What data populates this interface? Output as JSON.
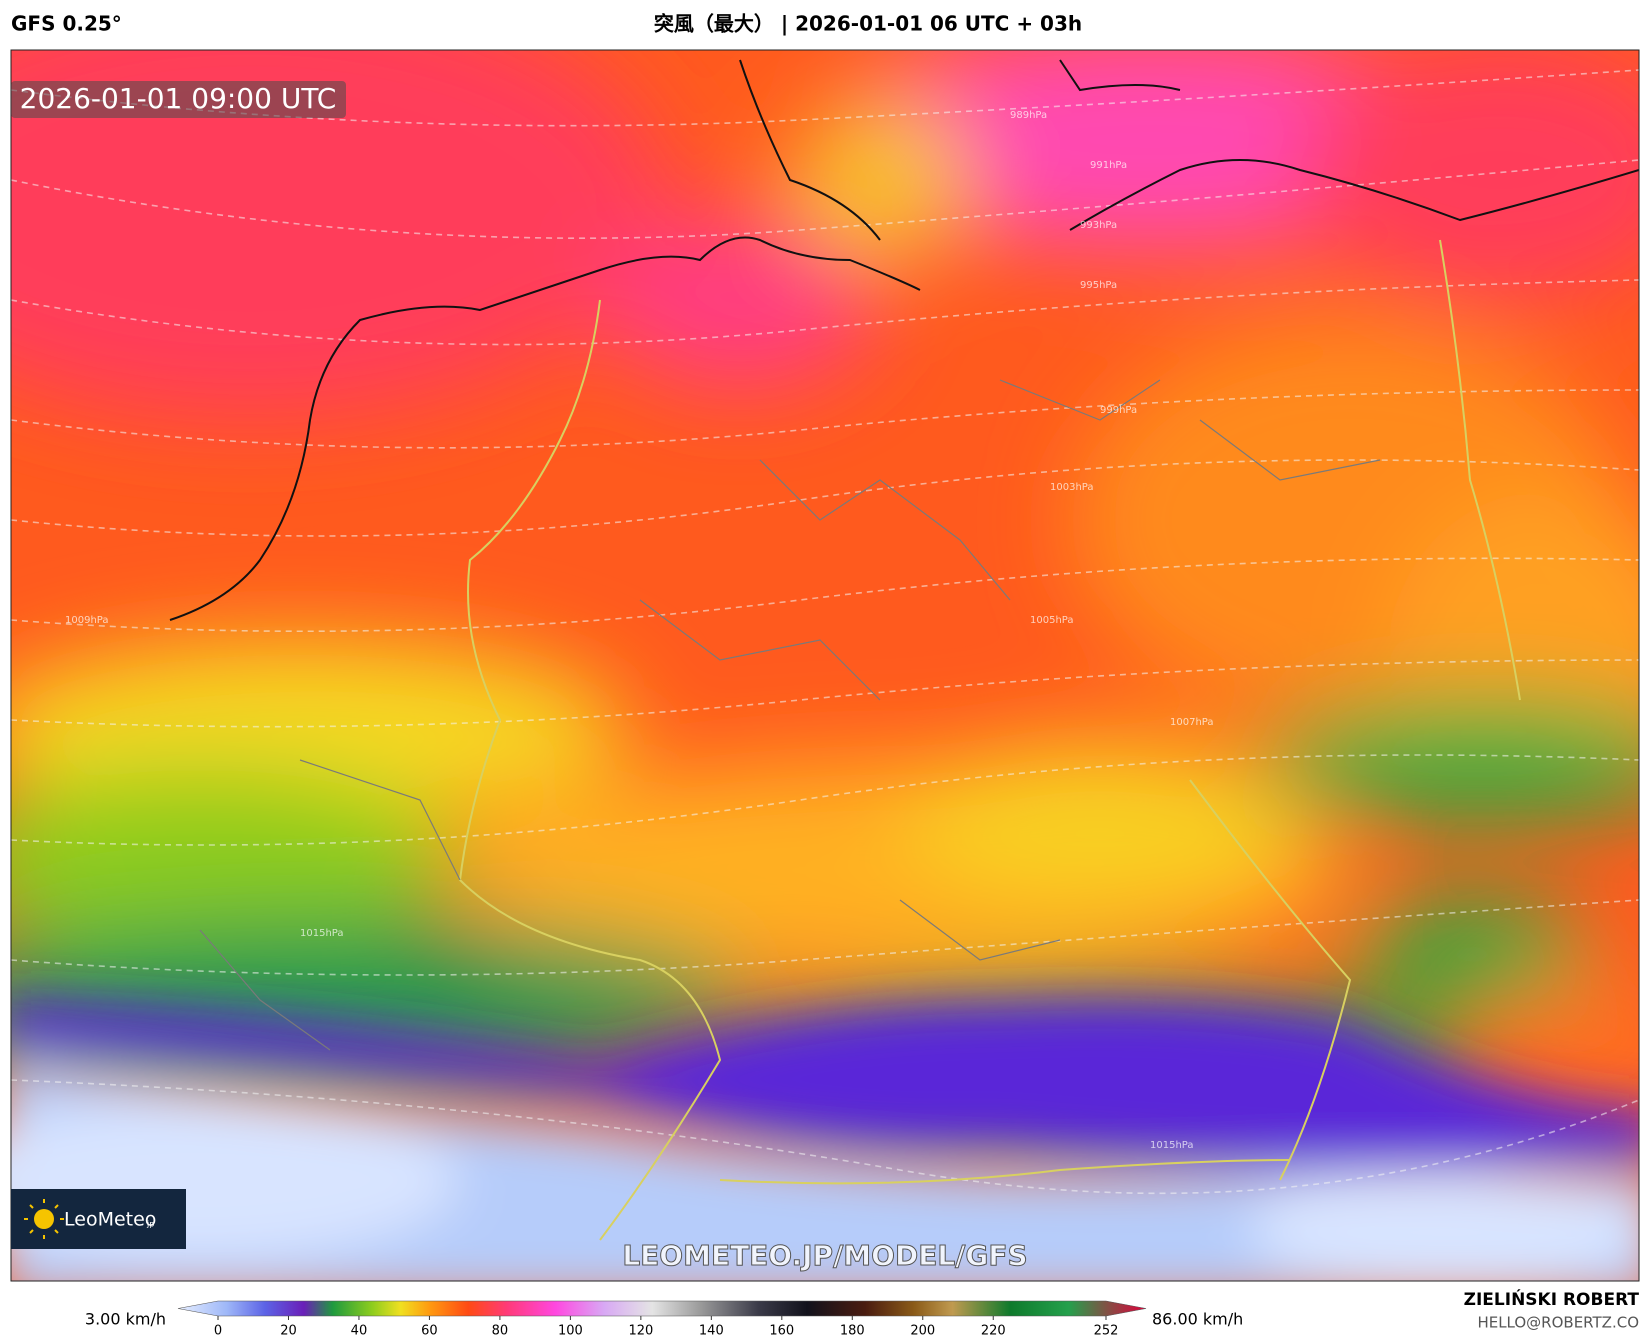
{
  "header": {
    "model": "GFS 0.25°",
    "title": "突風（最大） | 2026-01-01 06 UTC + 03h"
  },
  "map": {
    "valid_time": "2026-01-01 09:00 UTC",
    "logo": "LeoMeteo",
    "logo_suffix": "jp",
    "watermark": "LEOMETEO.JP/MODEL/GFS",
    "isobar_labels": [
      "989hPa",
      "991hPa",
      "993hPa",
      "995hPa",
      "999hPa",
      "1003hPa",
      "1005hPa",
      "1007hPa",
      "1009hPa",
      "1015hPa",
      "1015hPa"
    ]
  },
  "colorbar": {
    "min_label": "3.00 km/h",
    "max_label": "86.00 km/h",
    "lim": [
      0,
      252
    ],
    "ticks": [
      0,
      20,
      40,
      60,
      80,
      100,
      120,
      140,
      160,
      180,
      200,
      220,
      252
    ]
  },
  "footer": {
    "author": "ZIELIŃSKI ROBERT",
    "contact": "HELLO@ROBERTZ.CO"
  }
}
